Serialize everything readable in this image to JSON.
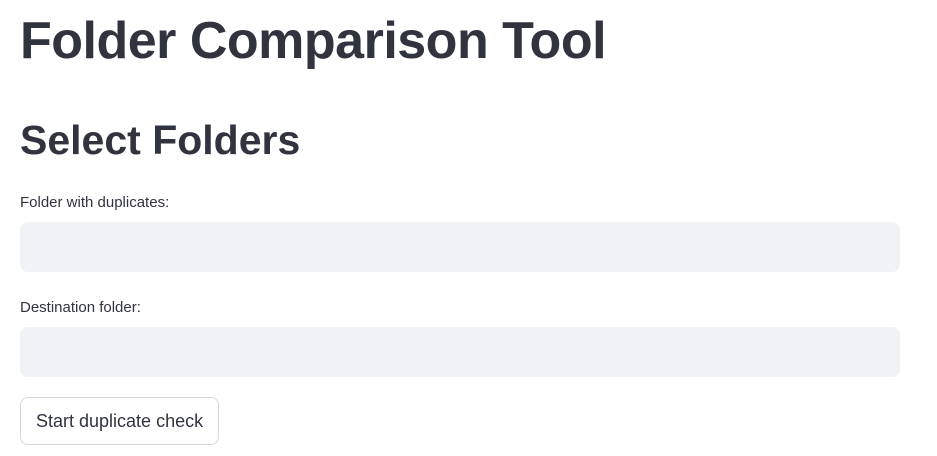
{
  "page": {
    "title": "Folder Comparison Tool",
    "section_title": "Select Folders"
  },
  "form": {
    "source_label": "Folder with duplicates:",
    "source_value": "",
    "source_placeholder": "",
    "destination_label": "Destination folder:",
    "destination_value": "",
    "destination_placeholder": "",
    "submit_label": "Start duplicate check"
  },
  "colors": {
    "text": "#31333f",
    "input_background": "#f0f2f6",
    "button_border": "#d5d7de",
    "background": "#ffffff"
  }
}
